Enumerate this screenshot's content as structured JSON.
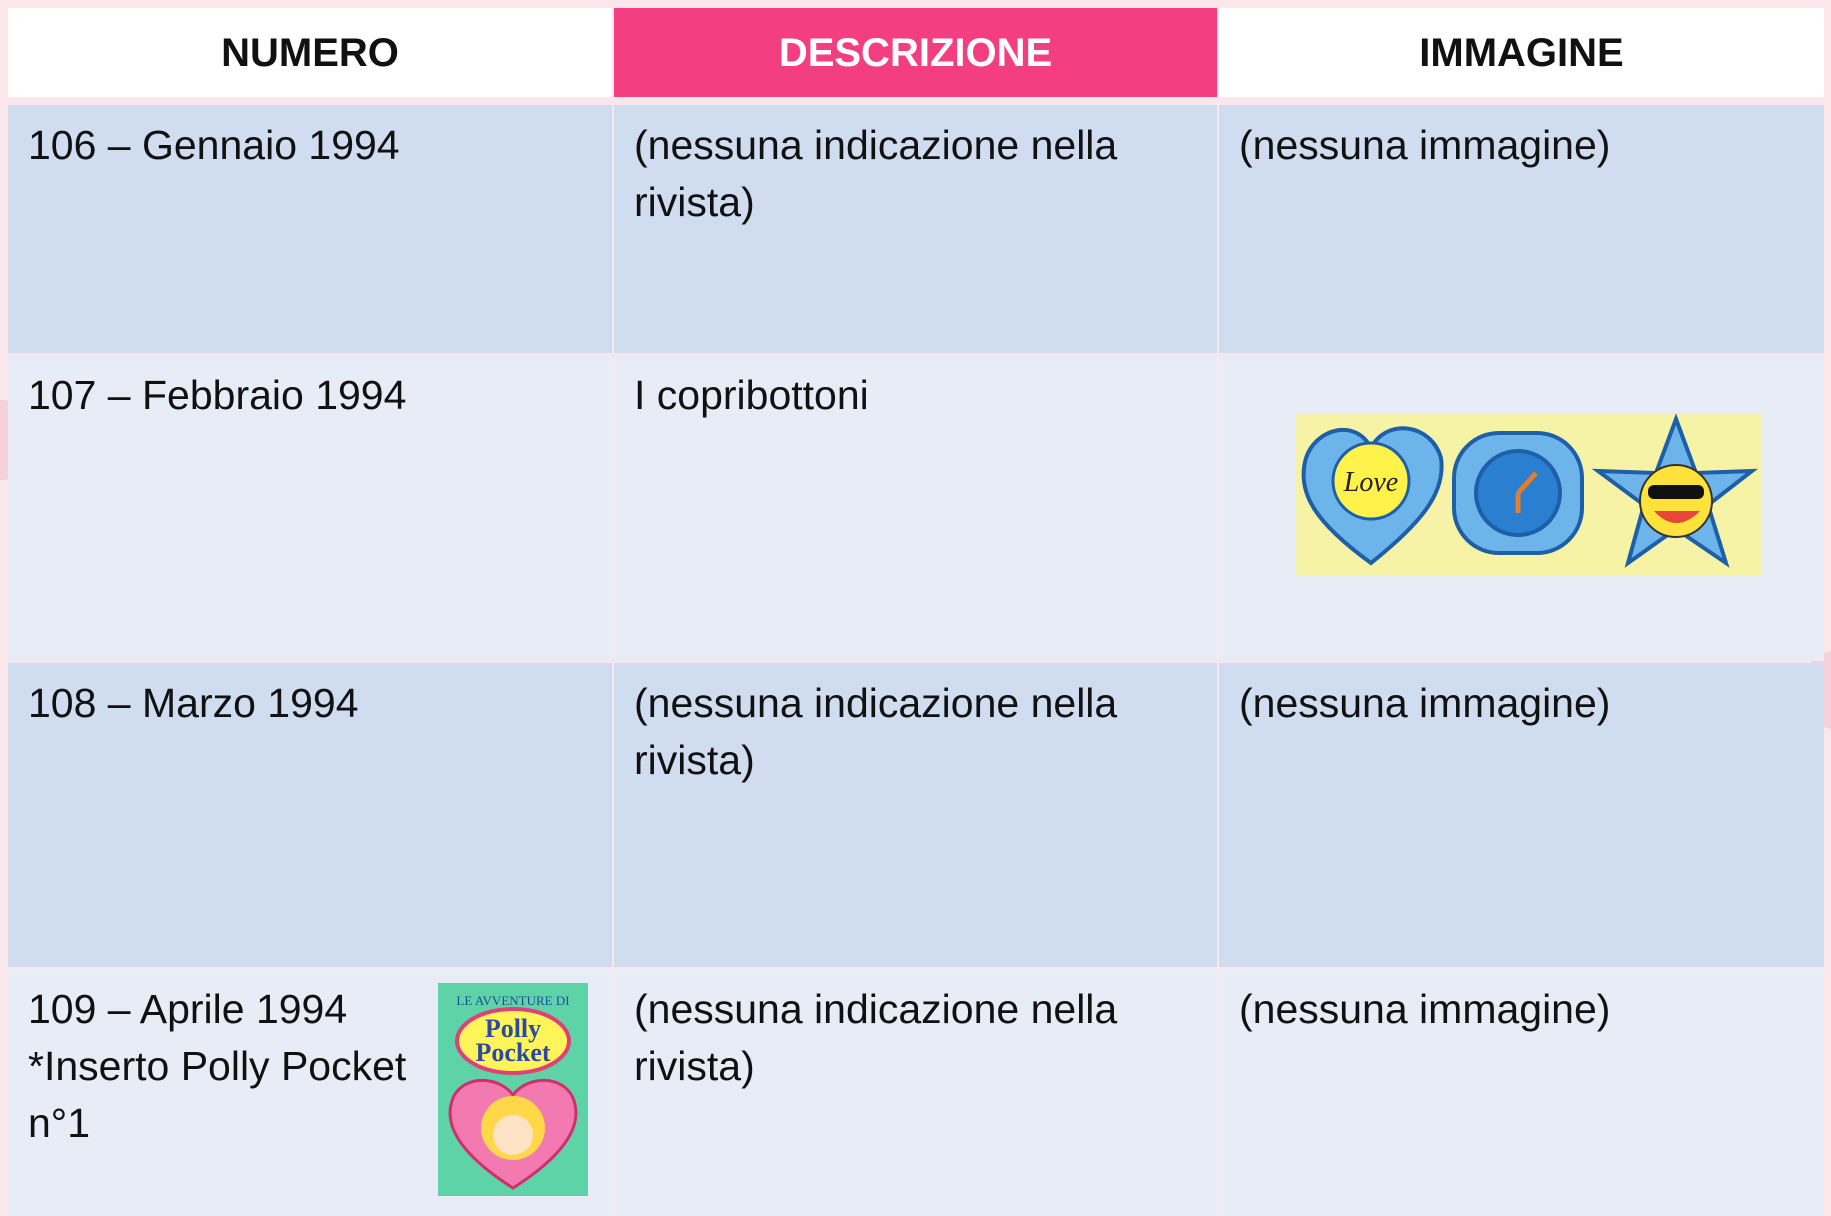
{
  "table": {
    "header": [
      "NUMERO",
      "DESCRIZIONE",
      "IMMAGINE"
    ],
    "rows": [
      [
        [
          "106 – Gennaio 1994"
        ],
        [
          "(nessuna indicazione nella rivista)"
        ],
        [
          "(nessuna immagine)"
        ]
      ],
      [
        [
          "107 – Febbraio 1994"
        ],
        [
          "I copribottoni"
        ],
        []
      ],
      [
        [
          "108 – Marzo 1994"
        ],
        [
          "(nessuna indicazione nella rivista)"
        ],
        [
          "(nessuna immagine)"
        ]
      ],
      [
        [
          "109 – Aprile 1994",
          "*Inserto Polly Pocket",
          "n°1"
        ],
        [
          "(nessuna indicazione nella rivista)"
        ],
        [
          "(nessuna immagine)"
        ]
      ]
    ]
  },
  "images": {
    "buttons_text": "Love",
    "cover_top": "LE AVVENTURE DI",
    "cover_title": [
      "Polly",
      "Pocket"
    ]
  }
}
